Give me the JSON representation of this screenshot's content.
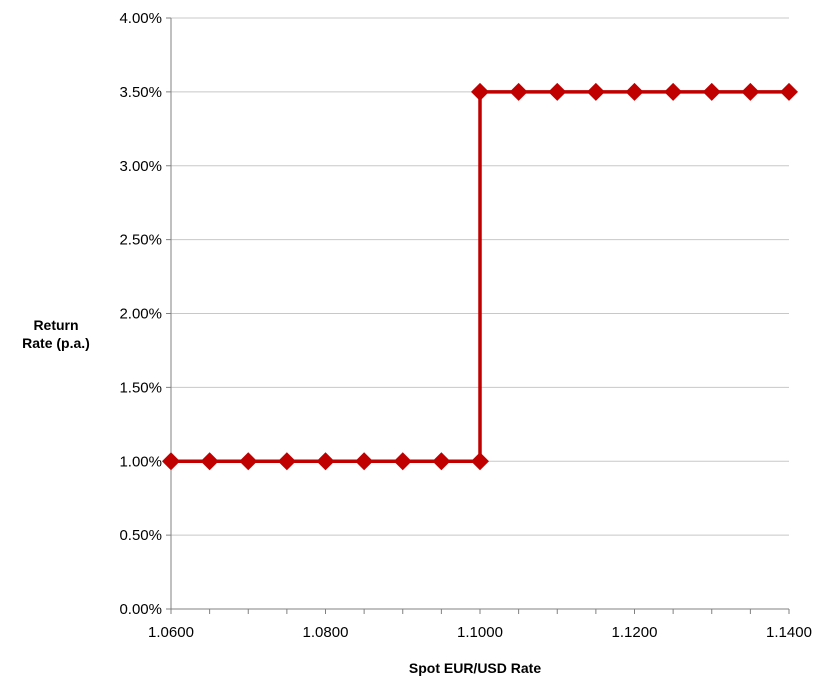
{
  "chart_data": {
    "type": "line",
    "title": "",
    "xlabel": "Spot EUR/USD  Rate",
    "ylabel_lines": [
      "Return",
      "Rate (p.a.)"
    ],
    "xlim": [
      1.06,
      1.14
    ],
    "ylim": [
      0,
      0.04
    ],
    "x_ticks": [
      1.06,
      1.08,
      1.1,
      1.12,
      1.14
    ],
    "x_tick_labels": [
      "1.0600",
      "1.0800",
      "1.1000",
      "1.1200",
      "1.1400"
    ],
    "y_ticks": [
      0,
      0.005,
      0.01,
      0.015,
      0.02,
      0.025,
      0.03,
      0.035,
      0.04
    ],
    "y_tick_labels": [
      "0.00%",
      "0.50%",
      "1.00%",
      "1.50%",
      "2.00%",
      "2.50%",
      "3.00%",
      "3.50%",
      "4.00%"
    ],
    "grid": "horizontal",
    "legend": "none",
    "series": [
      {
        "color": "#c00000",
        "marker": "diamond",
        "x": [
          1.06,
          1.065,
          1.07,
          1.075,
          1.08,
          1.085,
          1.09,
          1.095,
          1.1,
          1.1,
          1.105,
          1.11,
          1.115,
          1.12,
          1.125,
          1.13,
          1.135,
          1.14
        ],
        "y": [
          0.01,
          0.01,
          0.01,
          0.01,
          0.01,
          0.01,
          0.01,
          0.01,
          0.01,
          0.035,
          0.035,
          0.035,
          0.035,
          0.035,
          0.035,
          0.035,
          0.035,
          0.035
        ]
      }
    ]
  }
}
